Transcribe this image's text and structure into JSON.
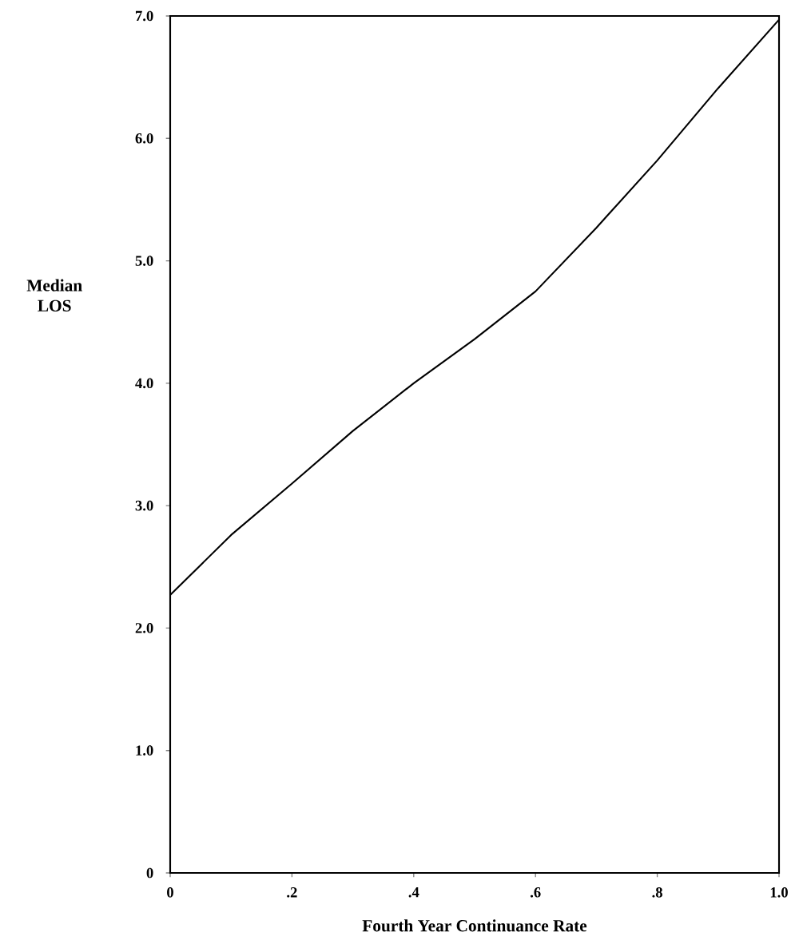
{
  "chart_data": {
    "type": "line",
    "xlabel": "Fourth Year Continuance Rate",
    "ylabel": "Median LOS",
    "x": [
      0,
      0.1,
      0.2,
      0.3,
      0.4,
      0.5,
      0.6,
      0.7,
      0.8,
      0.9,
      1.0
    ],
    "series": [
      {
        "color": "#000000",
        "values": [
          2.27,
          2.76,
          3.18,
          3.61,
          4.0,
          4.36,
          4.75,
          5.27,
          5.82,
          6.41,
          6.97
        ]
      }
    ],
    "xlim": [
      0,
      1.0
    ],
    "ylim": [
      0,
      7.0
    ],
    "xticks": [
      0,
      {
        "value": 0.2,
        "label": ".2"
      },
      {
        "value": 0.4,
        "label": ".4"
      },
      {
        "value": 0.6,
        "label": ".6"
      },
      {
        "value": 0.8,
        "label": ".8"
      },
      {
        "value": 1.0,
        "label": "1.0"
      }
    ],
    "yticks": [
      0,
      {
        "value": 1.0,
        "label": "1.0"
      },
      {
        "value": 2.0,
        "label": "2.0"
      },
      {
        "value": 3.0,
        "label": "3.0"
      },
      {
        "value": 4.0,
        "label": "4.0"
      },
      {
        "value": 5.0,
        "label": "5.0"
      },
      {
        "value": 6.0,
        "label": "6.0"
      },
      {
        "value": 7.0,
        "label": "7.0"
      }
    ],
    "grid": false,
    "marker": "none",
    "line_style": "solid"
  }
}
